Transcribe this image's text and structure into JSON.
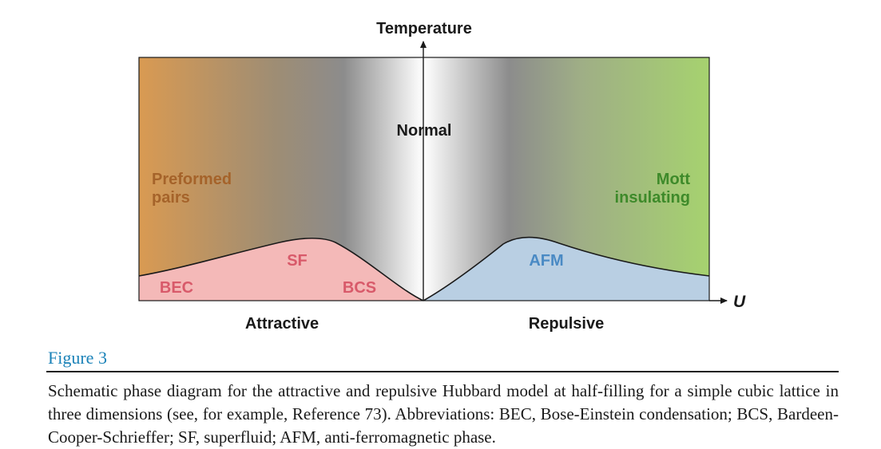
{
  "diagram": {
    "y_axis_label": "Temperature",
    "x_axis_label": "U",
    "regions": {
      "normal": "Normal",
      "preformed_line1": "Preformed",
      "preformed_line2": "pairs",
      "mott_line1": "Mott",
      "mott_line2": "insulating",
      "sf": "SF",
      "bec": "BEC",
      "bcs": "BCS",
      "afm": "AFM"
    },
    "bottom_labels": {
      "attractive": "Attractive",
      "repulsive": "Repulsive"
    },
    "colors": {
      "preformed": "#d99a52",
      "mott": "#a6d26f",
      "attractive_phase": "#f4b9b8",
      "repulsive_phase": "#b9cfe3",
      "normal_center": "#ffffff",
      "normal_dark": "#8c8c8c",
      "preformed_text": "#a5632a",
      "mott_text": "#3e8a2a",
      "attractive_text": "#d85a6a",
      "repulsive_text": "#4a8ac4"
    }
  },
  "figure": {
    "label": "Figure 3",
    "caption": "Schematic phase diagram for the attractive and repulsive Hubbard model at half-filling for a simple cubic lattice in three dimensions (see, for example, Reference 73). Abbreviations: BEC, Bose-Einstein condensation; BCS, Bardeen-Cooper-Schrieffer; SF, superfluid; AFM, anti-ferromagnetic phase."
  }
}
